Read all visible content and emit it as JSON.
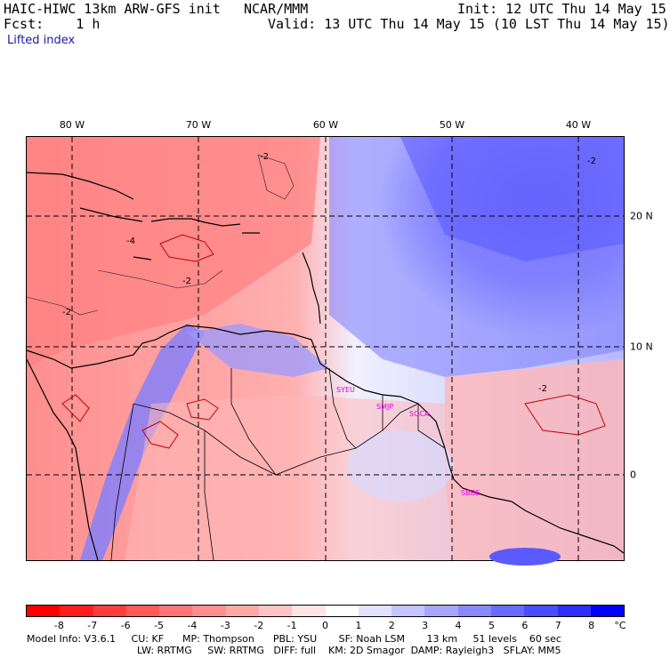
{
  "header": {
    "model": "HAIC-HIWC 13km ARW-GFS init",
    "org": "NCAR/MMM",
    "init": "Init: 12 UTC Thu 14 May 15",
    "fcst": "Fcst:    1 h",
    "valid": "Valid: 13 UTC Thu 14 May 15 (10 LST Thu 14 May 15)",
    "field": "Lifted index"
  },
  "lon_labels": [
    "80 W",
    "70 W",
    "60 W",
    "50 W",
    "40 W"
  ],
  "lat_labels": [
    "20 N",
    "10 N",
    "0"
  ],
  "contour_labels": [
    "-2",
    "-2",
    "-2",
    "-2",
    "-4",
    "-2"
  ],
  "cities": [
    "SYEU",
    "SMJP",
    "SOCA",
    "SBBE"
  ],
  "colorbar": {
    "ticks": [
      "-8",
      "-7",
      "-6",
      "-5",
      "-4",
      "-3",
      "-2",
      "-1",
      "0",
      "1",
      "2",
      "3",
      "4",
      "5",
      "6",
      "7",
      "8"
    ],
    "unit": "°C",
    "colors": [
      "#ff0000",
      "#ff1f1f",
      "#ff3d3d",
      "#ff5a5a",
      "#ff7474",
      "#ff8e8e",
      "#ffa8a8",
      "#ffc4c4",
      "#ffe4e4",
      "#ffffff",
      "#e2e2ff",
      "#c4c4ff",
      "#a6a6ff",
      "#8888ff",
      "#6a6aff",
      "#4c4cff",
      "#2e2eff",
      "#0000ff"
    ]
  },
  "footer": {
    "line1": "Model Info: V3.6.1     CU: KF      MP: Thompson      PBL: YSU       SF: Noah LSM       13 km     51 levels    60 sec",
    "line2": "LW: RRTMG     SW: RRTMG   DIFF: full    KM: 2D Smagor  DAMP: Rayleigh3   SFLAY: MM5"
  }
}
